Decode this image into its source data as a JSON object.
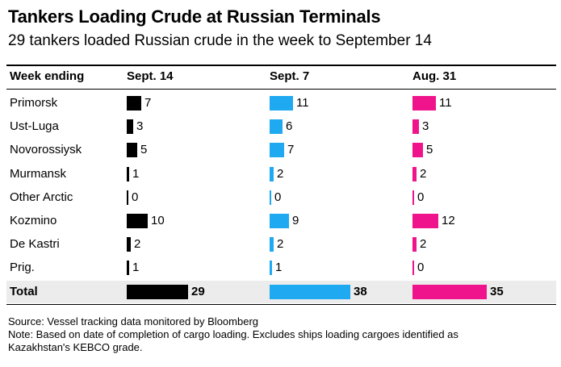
{
  "chart_data": {
    "type": "table",
    "title": "Tankers Loading Crude at Russian Terminals",
    "subtitle": "29 tankers loaded Russian crude in the week to September 14",
    "row_header": "Week ending",
    "columns": [
      {
        "label": "Sept. 14",
        "color": "#000000"
      },
      {
        "label": "Sept. 7",
        "color": "#1fa9f0"
      },
      {
        "label": "Aug. 31",
        "color": "#f0148c"
      }
    ],
    "rows": [
      {
        "label": "Primorsk",
        "values": [
          7,
          11,
          11
        ]
      },
      {
        "label": "Ust-Luga",
        "values": [
          3,
          6,
          3
        ]
      },
      {
        "label": "Novorossiysk",
        "values": [
          5,
          7,
          5
        ]
      },
      {
        "label": "Murmansk",
        "values": [
          1,
          2,
          2
        ]
      },
      {
        "label": "Other Arctic",
        "values": [
          0,
          0,
          0
        ]
      },
      {
        "label": "Kozmino",
        "values": [
          10,
          9,
          12
        ]
      },
      {
        "label": "De Kastri",
        "values": [
          2,
          2,
          2
        ]
      },
      {
        "label": "Prig.",
        "values": [
          1,
          1,
          0
        ]
      }
    ],
    "total": {
      "label": "Total",
      "values": [
        29,
        38,
        35
      ]
    },
    "source": "Source: Vessel tracking data monitored by Bloomberg",
    "note_line1": "Note: Based on date of completion of cargo loading. Excludes ships loading cargoes identified as",
    "note_line2": "Kazakhstan's KEBCO grade."
  }
}
